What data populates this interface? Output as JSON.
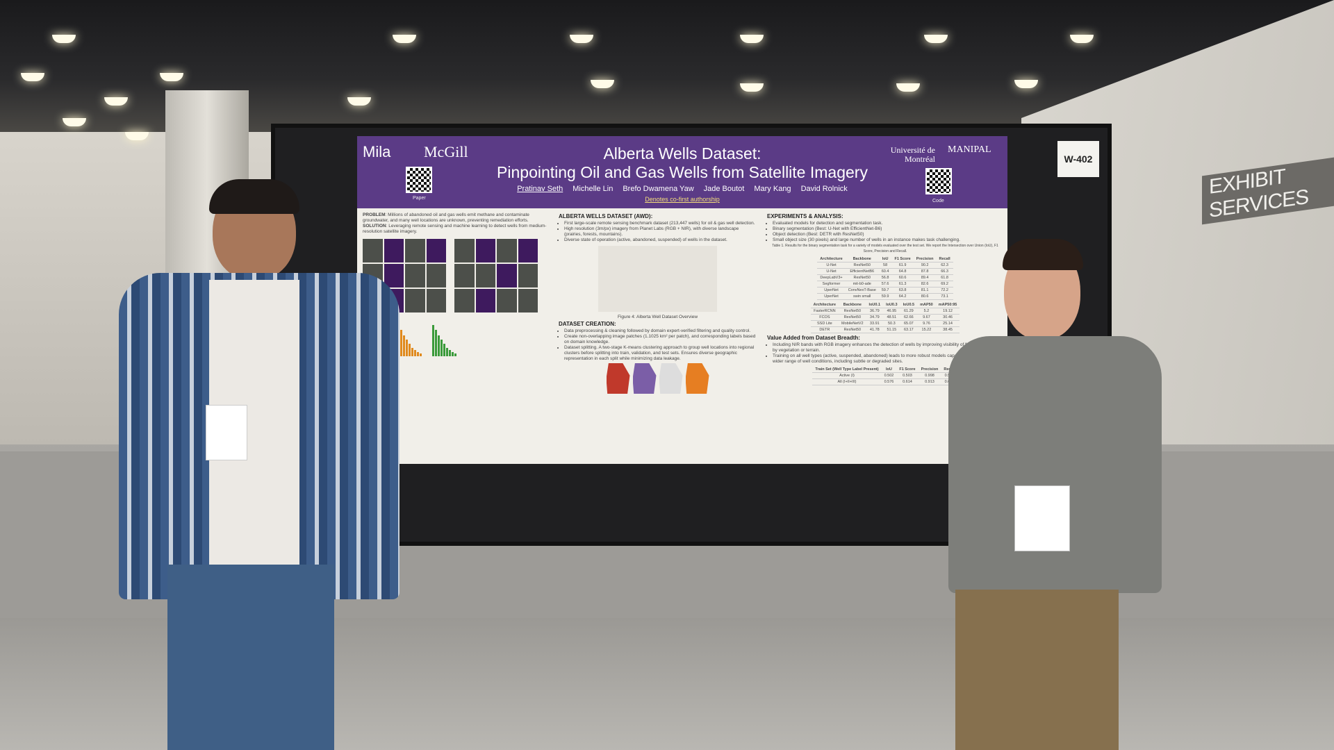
{
  "poster": {
    "logos": [
      "Mila",
      "McGill",
      "Université de Montréal",
      "MANIPAL"
    ],
    "qr_captions": {
      "paper": "Paper",
      "code": "Code"
    },
    "title_line1": "Alberta Wells Dataset:",
    "title_line2": "Pinpointing Oil and Gas Wells from Satellite Imagery",
    "authors": [
      "Pratinav Seth",
      "Michelle Lin",
      "Brefo Dwamena Yaw",
      "Jade Boutot",
      "Mary Kang",
      "David Rolnick"
    ],
    "cofirst_note": "Denotes co-first authorship",
    "problem_label": "PROBLEM",
    "problem": "Millions of abandoned oil and gas wells emit methane and contaminate groundwater, and many well locations are unknown, preventing remediation efforts.",
    "solution_label": "SOLUTION",
    "solution": "Leveraging remote sensing and machine learning to detect wells from medium-resolution satellite imagery.",
    "awd_heading": "ALBERTA WELLS DATASET (AWD):",
    "awd_points": [
      "First large-scale remote sensing benchmark dataset (213,447 wells) for oil & gas well detection.",
      "High resolution (3m/px) imagery from Planet Labs (RGB + NIR), with diverse landscape (prairies, forests, mountains).",
      "Diverse state of operation (active, abandoned, suspended) of wells in the dataset."
    ],
    "creation_heading": "DATASET CREATION:",
    "creation_points": [
      "Data preprocessing & cleaning followed by domain expert-verified filtering and quality control.",
      "Create non-overlapping image patches (1.1025 km² per patch), and corresponding labels based on domain knowledge.",
      "Dataset splitting. A two-stage K-means clustering approach to group well locations into regional clusters before splitting into train, validation, and test sets. Ensures diverse geographic representation in each split while minimizing data leakage."
    ],
    "experiments_heading": "EXPERIMENTS & ANALYSIS:",
    "experiments_points": [
      "Evaluated models for detection and segmentation task.",
      "Binary segmentation (Best: U-Net with EfficientNet-B6)",
      "Object detection (Best: DETR with ResNet50)",
      "Small object size (30 pixels) and large number of wells in an instance makes task challenging."
    ],
    "table1_caption": "Table 1. Results for the binary segmentation task for a variety of models evaluated over the test set. We report the Intersection over Union (IoU), F1 Score, Precision and Recall.",
    "table1": {
      "headers": [
        "Architecture",
        "Backbone",
        "IoU",
        "F1 Score",
        "Precision",
        "Recall"
      ],
      "rows": [
        [
          "U-Net",
          "ResNet50",
          "58",
          "61.9",
          "90.2",
          "62.3"
        ],
        [
          "U-Net",
          "EfficientNetB6",
          "60.4",
          "64.8",
          "87.8",
          "66.3"
        ],
        [
          "DeepLabV3+",
          "ResNet50",
          "56.8",
          "60.6",
          "89.4",
          "61.8"
        ],
        [
          "Segformer",
          "mit-b0-ade",
          "57.6",
          "61.3",
          "82.6",
          "69.2"
        ],
        [
          "UperNet",
          "ConvNexT-Base",
          "59.7",
          "63.8",
          "81.1",
          "72.2"
        ],
        [
          "UperNet",
          "swin small",
          "59.9",
          "64.2",
          "80.6",
          "73.1"
        ]
      ]
    },
    "table2": {
      "headers": [
        "Architecture",
        "Backbone",
        "IoU0.1",
        "IoU0.3",
        "IoU0.5",
        "mAP50",
        "mAP50:95"
      ],
      "rows": [
        [
          "FasterRCNN",
          "ResNet50",
          "36.79",
          "46.95",
          "61.29",
          "5.2",
          "19.12"
        ],
        [
          "FCOS",
          "ResNet50",
          "34.79",
          "48.51",
          "62.66",
          "9.67",
          "30.46"
        ],
        [
          "SSD Lite",
          "MobileNetV2",
          "33.91",
          "50.3",
          "65.07",
          "9.76",
          "25.14"
        ],
        [
          "DETR",
          "ResNet50",
          "41.78",
          "51.15",
          "63.17",
          "15.22",
          "38.45"
        ]
      ]
    },
    "value_heading": "Value Added from Dataset Breadth:",
    "value_points": [
      "Including NIR bands with RGB imagery enhances the detection of wells by improving visibility of features obscured by vegetation or terrain.",
      "Training on all well types (active, suspended, abandoned) leads to more robust models capable of identifying a wider range of well conditions, including subtle or degraded sites."
    ],
    "table5": {
      "headers": [
        "Train Set (Well Type Label Present)",
        "IoU",
        "F1 Score",
        "Precision",
        "Recall"
      ],
      "rows": [
        [
          "Active (I)",
          "0.502",
          "0.503",
          "0.998",
          "0.502"
        ],
        [
          "All (I+II+III)",
          "0.576",
          "0.614",
          "0.913",
          "0.614"
        ]
      ]
    },
    "figure_caption": "Figure 4: Alberta Well Dataset Overview",
    "colors": {
      "header": "#5b3b86",
      "bars": [
        "#3f6fcf",
        "#e08a1e",
        "#3a9a3a"
      ]
    }
  },
  "booth_number": "W-402",
  "sign": "EXHIBIT SERVICES"
}
